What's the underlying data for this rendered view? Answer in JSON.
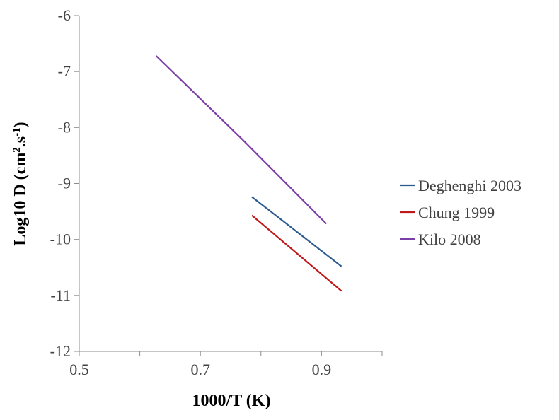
{
  "chart_data": {
    "type": "line",
    "xlabel": "1000/T (K)",
    "ylabel_main": "Log10 D (cm",
    "ylabel_sup1": "2",
    "ylabel_mid": ".s",
    "ylabel_sup2": "-1",
    "ylabel_end": ")",
    "xlim": [
      0.5,
      1.0
    ],
    "ylim": [
      -12,
      -6
    ],
    "xticks": [
      0.5,
      0.7,
      0.9
    ],
    "xtick_labels": [
      "0.5",
      "0.7",
      "0.9"
    ],
    "yticks": [
      -6,
      -7,
      -8,
      -9,
      -10,
      -11,
      -12
    ],
    "ytick_labels": [
      "-6",
      "-7",
      "-8",
      "-9",
      "-10",
      "-11",
      "-12"
    ],
    "grid": false,
    "legend_position": "right",
    "series": [
      {
        "name": "Deghenghi 2003",
        "color": "#2e5b8f",
        "x": [
          0.785,
          0.933
        ],
        "y": [
          -9.24,
          -10.48
        ]
      },
      {
        "name": "Chung 1999",
        "color": "#c0191b",
        "x": [
          0.785,
          0.933
        ],
        "y": [
          -9.57,
          -10.92
        ]
      },
      {
        "name": "Kilo 2008",
        "color": "#7b3fa8",
        "x": [
          0.627,
          0.77,
          0.908
        ],
        "y": [
          -6.72,
          -8.22,
          -9.72
        ]
      }
    ]
  }
}
